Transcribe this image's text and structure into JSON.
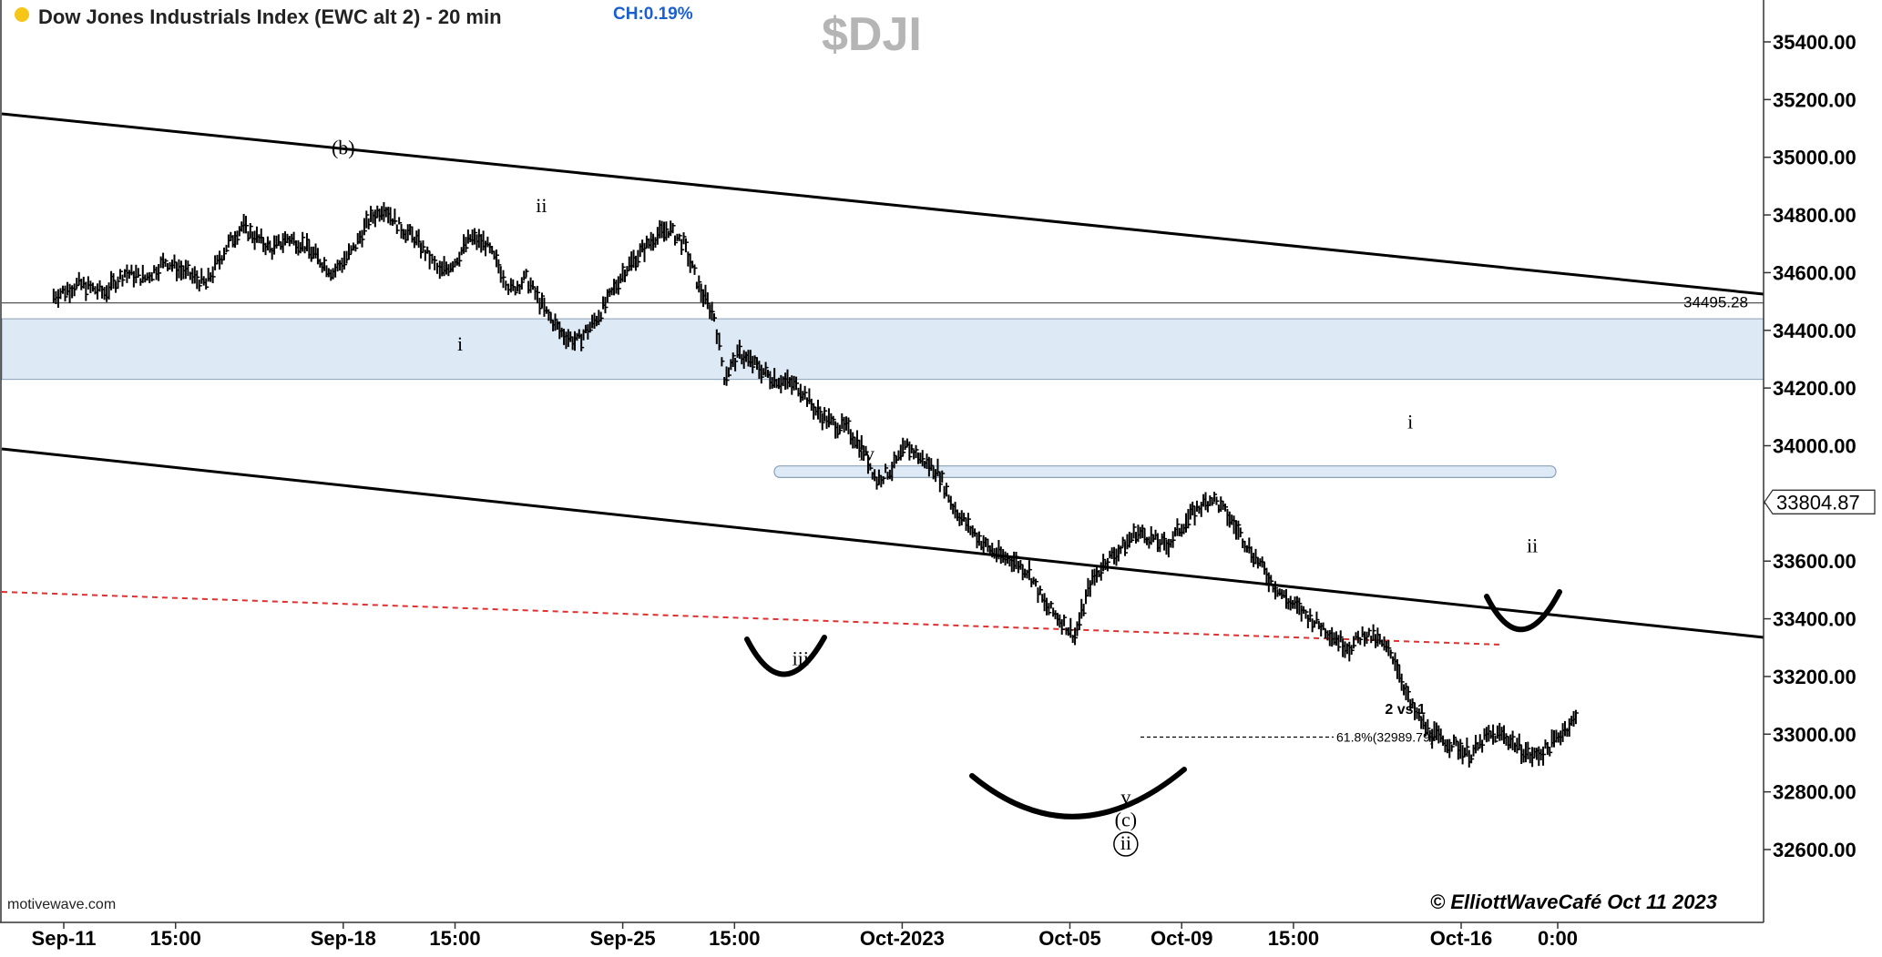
{
  "header": {
    "status_color": "#f5c518",
    "title": "Dow Jones Industrials Index (EWC alt 2) - 20 min",
    "change": "CH:0.19%",
    "symbol": "$DJI"
  },
  "footer": {
    "source": "motivewave.com",
    "copyright": "© ElliottWaveCafé Oct 11 2023"
  },
  "colors": {
    "bars": "#000000",
    "resistance_zone": "#ddeaf5",
    "resistance_border": "#8aa0b8",
    "fib_line": "#e03030",
    "change_text": "#1a5fd0",
    "symbol_text": "#b5b5b5"
  },
  "chart_data": {
    "type": "bar",
    "title": "Dow Jones Industrials Index (EWC alt 2) - 20 min",
    "subtitle": "$DJI",
    "ylim": [
      32400,
      35600
    ],
    "y_ticks": [
      32600,
      32800,
      33000,
      33200,
      33400,
      33600,
      33800,
      34000,
      34200,
      34400,
      34600,
      34800,
      35000,
      35200,
      35400
    ],
    "y_tick_labels": [
      "32600.00",
      "32800.00",
      "33000.00",
      "33200.00",
      "33400.00",
      "33600.00",
      "33800.00",
      "34000.00",
      "34200.00",
      "34400.00",
      "34600.00",
      "34800.00",
      "35000.00",
      "35200.00",
      "35400.00"
    ],
    "x_tick_labels": [
      {
        "label": "Sep-11",
        "t": 0
      },
      {
        "label": "15:00",
        "t": 22
      },
      {
        "label": "Sep-18",
        "t": 55
      },
      {
        "label": "15:00",
        "t": 77
      },
      {
        "label": "Sep-25",
        "t": 110
      },
      {
        "label": "15:00",
        "t": 132
      },
      {
        "label": "Oct-2023",
        "t": 165
      },
      {
        "label": "Oct-05",
        "t": 198
      },
      {
        "label": "Oct-09",
        "t": 220
      },
      {
        "label": "15:00",
        "t": 242
      },
      {
        "label": "Oct-16",
        "t": 275
      },
      {
        "label": "0:00",
        "t": 294
      }
    ],
    "x_range": [
      -8,
      302
    ],
    "series": [
      {
        "values": [
          [
            -2,
            34520
          ],
          [
            3,
            34560
          ],
          [
            8,
            34530
          ],
          [
            12,
            34600
          ],
          [
            16,
            34580
          ],
          [
            20,
            34640
          ],
          [
            24,
            34600
          ],
          [
            28,
            34560
          ],
          [
            32,
            34690
          ],
          [
            35,
            34760
          ],
          [
            38,
            34720
          ],
          [
            41,
            34680
          ],
          [
            44,
            34720
          ],
          [
            47,
            34700
          ],
          [
            50,
            34650
          ],
          [
            53,
            34600
          ],
          [
            57,
            34680
          ],
          [
            60,
            34780
          ],
          [
            63,
            34830
          ],
          [
            66,
            34760
          ],
          [
            69,
            34720
          ],
          [
            72,
            34650
          ],
          [
            74,
            34600
          ],
          [
            77,
            34640
          ],
          [
            80,
            34720
          ],
          [
            83,
            34700
          ],
          [
            86,
            34610
          ],
          [
            88,
            34540
          ],
          [
            91,
            34580
          ],
          [
            95,
            34460
          ],
          [
            98,
            34390
          ],
          [
            101,
            34360
          ],
          [
            104,
            34420
          ],
          [
            107,
            34500
          ],
          [
            110,
            34600
          ],
          [
            113,
            34660
          ],
          [
            116,
            34720
          ],
          [
            119,
            34750
          ],
          [
            122,
            34700
          ],
          [
            125,
            34550
          ],
          [
            128,
            34450
          ],
          [
            130,
            34240
          ],
          [
            133,
            34320
          ],
          [
            136,
            34280
          ],
          [
            139,
            34240
          ],
          [
            142,
            34220
          ],
          [
            145,
            34200
          ],
          [
            148,
            34120
          ],
          [
            151,
            34080
          ],
          [
            154,
            34060
          ],
          [
            157,
            34000
          ],
          [
            160,
            33880
          ],
          [
            163,
            33920
          ],
          [
            166,
            34000
          ],
          [
            169,
            33950
          ],
          [
            172,
            33910
          ],
          [
            175,
            33790
          ],
          [
            178,
            33720
          ],
          [
            181,
            33660
          ],
          [
            184,
            33620
          ],
          [
            187,
            33600
          ],
          [
            190,
            33560
          ],
          [
            193,
            33450
          ],
          [
            196,
            33400
          ],
          [
            199,
            33340
          ],
          [
            202,
            33520
          ],
          [
            205,
            33600
          ],
          [
            208,
            33640
          ],
          [
            211,
            33700
          ],
          [
            214,
            33680
          ],
          [
            217,
            33650
          ],
          [
            220,
            33720
          ],
          [
            223,
            33780
          ],
          [
            226,
            33820
          ],
          [
            229,
            33760
          ],
          [
            232,
            33680
          ],
          [
            235,
            33600
          ],
          [
            238,
            33520
          ],
          [
            241,
            33460
          ],
          [
            244,
            33420
          ],
          [
            247,
            33380
          ],
          [
            250,
            33340
          ],
          [
            253,
            33300
          ],
          [
            256,
            33350
          ],
          [
            259,
            33320
          ],
          [
            262,
            33260
          ],
          [
            265,
            33100
          ],
          [
            268,
            33020
          ],
          [
            271,
            32980
          ],
          [
            274,
            32960
          ],
          [
            277,
            32930
          ],
          [
            280,
            32990
          ],
          [
            283,
            33000
          ],
          [
            286,
            32960
          ],
          [
            289,
            32920
          ],
          [
            292,
            32950
          ],
          [
            295,
            33010
          ],
          [
            298,
            33060
          ]
        ]
      }
    ],
    "bars": [],
    "last_price": 33804.87,
    "last_price_label": "33804.87",
    "horizontal_level": {
      "value": 34495.28,
      "label": "34495.28"
    },
    "resistance_zone": {
      "from": 34230,
      "to": 34440
    },
    "target_zone": {
      "from": 33890,
      "to": 33930
    },
    "fib_retracement": {
      "value": 32989.79,
      "label": "61.8%(32989.79)"
    },
    "annotations": [
      {
        "text": "(b)",
        "t": 55,
        "v": 35010
      },
      {
        "text": "ii",
        "t": 94,
        "v": 34810
      },
      {
        "text": "i",
        "t": 78,
        "v": 34330
      },
      {
        "text": "iv",
        "t": 158,
        "v": 33950
      },
      {
        "text": "iii",
        "t": 145,
        "v": 33240
      },
      {
        "text": "v",
        "t": 209,
        "v": 32760
      },
      {
        "text": "(c)",
        "t": 209,
        "v": 32680
      },
      {
        "text": "ii",
        "t": 209,
        "v": 32600,
        "circled": true
      },
      {
        "text": "i",
        "t": 265,
        "v": 34060
      },
      {
        "text": "ii",
        "t": 289,
        "v": 33630
      },
      {
        "text": "2 vs 1",
        "t": 264,
        "v": 33070,
        "bold": true
      }
    ]
  }
}
